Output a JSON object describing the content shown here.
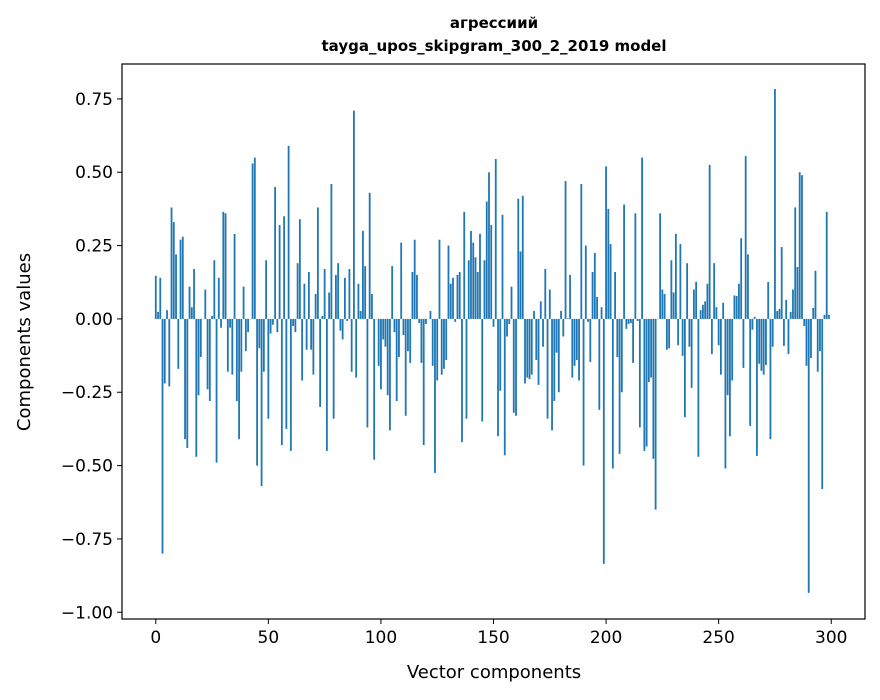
{
  "chart_data": {
    "type": "bar",
    "title": "агрессиий",
    "subtitle": "tayga_upos_skipgram_300_2_2019 model",
    "xlabel": "Vector components",
    "ylabel": "Components values",
    "xlim": [
      -15,
      315
    ],
    "ylim": [
      -1.023,
      0.869
    ],
    "xticks": [
      0,
      50,
      100,
      150,
      200,
      250,
      300
    ],
    "xtick_labels": [
      "0",
      "50",
      "100",
      "150",
      "200",
      "250",
      "300"
    ],
    "yticks": [
      0.75,
      0.5,
      0.25,
      0,
      -0.25,
      -0.5,
      -0.75,
      -1.0
    ],
    "ytick_labels": [
      "0.75",
      "0.50",
      "0.25",
      "0.00",
      "−0.25",
      "−0.50",
      "−0.75",
      "−1.00"
    ],
    "grid": false,
    "color": "#1f77b4",
    "values": [
      0.147,
      0.024,
      0.14,
      -0.8,
      -0.22,
      0.03,
      -0.23,
      0.38,
      0.33,
      0.22,
      -0.17,
      0.27,
      0.28,
      -0.41,
      -0.44,
      0.11,
      0.04,
      0.17,
      -0.47,
      -0.26,
      -0.13,
      0.0,
      0.1,
      -0.24,
      -0.28,
      0.01,
      0.2,
      -0.49,
      0.14,
      -0.03,
      0.365,
      0.36,
      -0.18,
      -0.03,
      -0.19,
      0.29,
      -0.28,
      -0.41,
      -0.18,
      0.11,
      -0.11,
      -0.045,
      0.0,
      0.53,
      0.55,
      -0.5,
      -0.1,
      -0.57,
      -0.18,
      0.2,
      -0.34,
      -0.05,
      -0.02,
      0.45,
      -0.045,
      0.32,
      -0.43,
      0.35,
      -0.375,
      0.59,
      -0.45,
      -0.024,
      -0.045,
      0.19,
      0.34,
      -0.21,
      0.12,
      -0.105,
      0.16,
      -0.105,
      -0.19,
      0.085,
      0.38,
      -0.3,
      0.01,
      0.17,
      -0.45,
      0.09,
      0.46,
      -0.34,
      0.15,
      0.19,
      -0.04,
      -0.07,
      0.14,
      -0.007,
      0.17,
      -0.18,
      0.71,
      -0.2,
      0.12,
      0.027,
      0.3,
      0.18,
      -0.37,
      0.43,
      0.085,
      -0.48,
      0.0,
      -0.16,
      -0.24,
      -0.07,
      -0.095,
      -0.26,
      -0.38,
      0.18,
      -0.045,
      -0.28,
      -0.13,
      0.26,
      -0.055,
      -0.33,
      -0.11,
      -0.15,
      0.16,
      0.27,
      0.15,
      -0.014,
      -0.15,
      -0.43,
      -0.017,
      0.0,
      0.027,
      -0.16,
      -0.525,
      -0.21,
      0.27,
      -0.19,
      -0.17,
      -0.14,
      0.25,
      0.12,
      0.14,
      -0.01,
      0.15,
      0.16,
      -0.42,
      0.365,
      -0.34,
      0.2,
      0.3,
      0.26,
      0.21,
      0.16,
      0.29,
      -0.35,
      0.2,
      0.4,
      0.5,
      0.32,
      -0.027,
      0.545,
      -0.4,
      -0.245,
      0.355,
      -0.465,
      -0.06,
      -0.017,
      0.11,
      -0.32,
      -0.33,
      0.41,
      0.23,
      0.42,
      -0.22,
      -0.2,
      -0.205,
      -0.19,
      0.027,
      -0.14,
      -0.225,
      0.06,
      -0.095,
      0.17,
      -0.34,
      0.1,
      -0.38,
      -0.28,
      -0.115,
      -0.25,
      0.027,
      -0.06,
      0.47,
      0.002,
      0.15,
      -0.2,
      -0.16,
      -0.14,
      -0.21,
      0.46,
      -0.5,
      0.25,
      -0.01,
      -0.147,
      0.16,
      0.225,
      0.075,
      -0.31,
      0.04,
      -0.835,
      0.52,
      0.375,
      0.255,
      -0.51,
      0.16,
      -0.13,
      -0.46,
      -0.25,
      0.39,
      -0.034,
      -0.017,
      -0.014,
      -0.15,
      0.36,
      -0.007,
      -0.37,
      0.55,
      -0.45,
      -0.435,
      -0.215,
      -0.2,
      -0.477,
      -0.65,
      0.0,
      0.36,
      0.1,
      0.085,
      -0.105,
      -0.1,
      0.2,
      0.09,
      0.29,
      -0.09,
      0.255,
      -0.126,
      -0.335,
      0.19,
      -0.095,
      -0.235,
      0.1,
      0.126,
      -0.47,
      0.03,
      0.048,
      0.06,
      0.12,
      0.525,
      -0.12,
      0.19,
      0.04,
      -0.09,
      -0.19,
      0.055,
      -0.51,
      -0.26,
      -0.4,
      -0.21,
      0.08,
      0.078,
      0.12,
      0.275,
      -0.167,
      0.555,
      0.22,
      -0.365,
      -0.037,
      0.007,
      -0.467,
      -0.153,
      -0.177,
      -0.19,
      -0.157,
      0.126,
      -0.41,
      -0.095,
      0.784,
      0.027,
      0.034,
      0.245,
      -0.092,
      0.065,
      -0.12,
      0.024,
      0.1,
      0.38,
      0.177,
      0.5,
      0.49,
      -0.024,
      -0.16,
      -0.934,
      -0.133,
      0.0375,
      0.164,
      -0.18,
      -0.11,
      -0.58,
      0.014,
      0.365,
      0.014
    ]
  }
}
